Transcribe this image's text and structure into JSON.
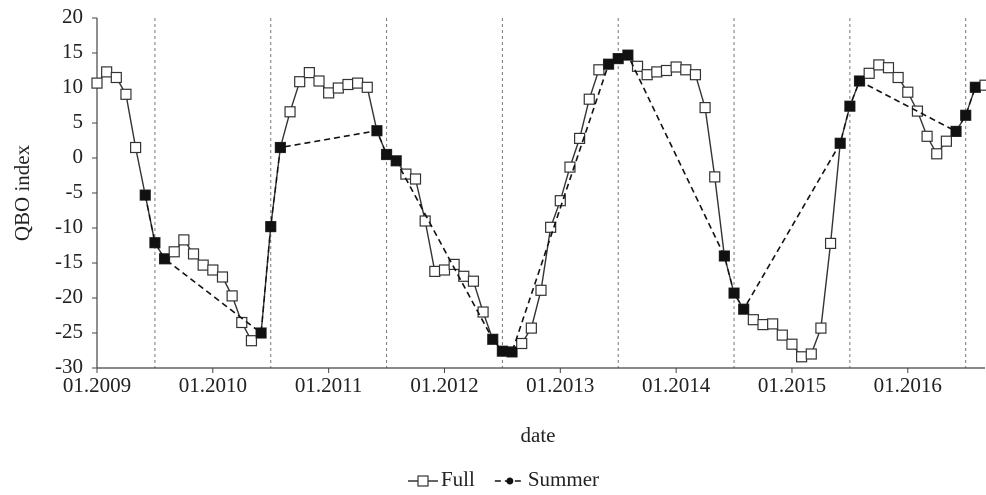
{
  "chart_data": {
    "type": "line",
    "xlabel": "date",
    "ylabel": "QBO index",
    "xlim": [
      "01.2009",
      "09.2016"
    ],
    "xticks": [
      "01.2009",
      "01.2010",
      "01.2011",
      "01.2012",
      "01.2013",
      "01.2014",
      "01.2015",
      "01.2016"
    ],
    "ylim": [
      -30,
      20
    ],
    "yticks": [
      -30,
      -25,
      -20,
      -15,
      -10,
      -5,
      0,
      5,
      10,
      15,
      20
    ],
    "legend": "bottom",
    "series": [
      {
        "name": "Full",
        "color": "#333333",
        "x": [
          "01.2009",
          "02.2009",
          "03.2009",
          "04.2009",
          "05.2009",
          "06.2009",
          "07.2009",
          "08.2009",
          "09.2009",
          "10.2009",
          "11.2009",
          "12.2009",
          "01.2010",
          "02.2010",
          "03.2010",
          "04.2010",
          "05.2010",
          "06.2010",
          "07.2010",
          "08.2010",
          "09.2010",
          "10.2010",
          "11.2010",
          "12.2010",
          "01.2011",
          "02.2011",
          "03.2011",
          "04.2011",
          "05.2011",
          "06.2011",
          "07.2011",
          "08.2011",
          "09.2011",
          "10.2011",
          "11.2011",
          "12.2011",
          "01.2012",
          "02.2012",
          "03.2012",
          "04.2012",
          "05.2012",
          "06.2012",
          "07.2012",
          "08.2012",
          "09.2012",
          "10.2012",
          "11.2012",
          "12.2012",
          "01.2013",
          "02.2013",
          "03.2013",
          "04.2013",
          "05.2013",
          "06.2013",
          "07.2013",
          "08.2013",
          "09.2013",
          "10.2013",
          "11.2013",
          "12.2013",
          "01.2014",
          "02.2014",
          "03.2014",
          "04.2014",
          "05.2014",
          "06.2014",
          "07.2014",
          "08.2014",
          "09.2014",
          "10.2014",
          "11.2014",
          "12.2014",
          "01.2015",
          "02.2015",
          "03.2015",
          "04.2015",
          "05.2015",
          "06.2015",
          "07.2015",
          "08.2015",
          "09.2015",
          "10.2015",
          "11.2015",
          "12.2015",
          "01.2016",
          "02.2016",
          "03.2016",
          "04.2016",
          "05.2016",
          "06.2016",
          "07.2016",
          "08.2016",
          "09.2016"
        ],
        "values": [
          10.7,
          12.3,
          11.5,
          9.1,
          1.5,
          -5.3,
          -12.1,
          -14.4,
          -13.4,
          -11.7,
          -13.7,
          -15.3,
          -16,
          -17,
          -19.7,
          -23.5,
          -26.1,
          -25,
          -9.8,
          1.5,
          6.6,
          10.9,
          12.2,
          11,
          9.3,
          10,
          10.5,
          10.7,
          10.1,
          3.9,
          0.5,
          -0.4,
          -2.3,
          -3,
          -9,
          -16.2,
          -16,
          -15.2,
          -16.9,
          -17.6,
          -22,
          -25.9,
          -27.6,
          -27.7,
          -26.5,
          -24.3,
          -18.9,
          -9.9,
          -6.1,
          -1.3,
          2.8,
          8.4,
          12.6,
          13.4,
          14.2,
          14.7,
          13.1,
          11.9,
          12.3,
          12.5,
          13,
          12.6,
          11.9,
          7.2,
          -2.7,
          -14,
          -19.3,
          -21.6,
          -23.1,
          -23.8,
          -23.7,
          -25.3,
          -26.6,
          -28.4,
          -28,
          -24.3,
          -12.2,
          2.1,
          7.4,
          11,
          12.1,
          13.3,
          12.9,
          11.5,
          9.4,
          6.7,
          3.1,
          0.6,
          2.4,
          3.8,
          6.1,
          10.1,
          10.4
        ]
      },
      {
        "name": "Summer",
        "color": "#111111",
        "x": [
          "06.2009",
          "07.2009",
          "08.2009",
          "06.2010",
          "07.2010",
          "08.2010",
          "06.2011",
          "07.2011",
          "08.2011",
          "06.2012",
          "07.2012",
          "08.2012",
          "06.2013",
          "07.2013",
          "08.2013",
          "06.2014",
          "07.2014",
          "08.2014",
          "06.2015",
          "07.2015",
          "08.2015",
          "06.2016",
          "07.2016",
          "08.2016"
        ],
        "values": [
          -5.3,
          -12.1,
          -14.4,
          -25,
          -9.8,
          1.5,
          3.9,
          0.5,
          -0.4,
          -25.9,
          -27.6,
          -27.7,
          13.4,
          14.2,
          14.7,
          -14,
          -19.3,
          -21.6,
          2.1,
          7.4,
          11,
          3.8,
          6.1,
          10.1
        ]
      }
    ]
  }
}
